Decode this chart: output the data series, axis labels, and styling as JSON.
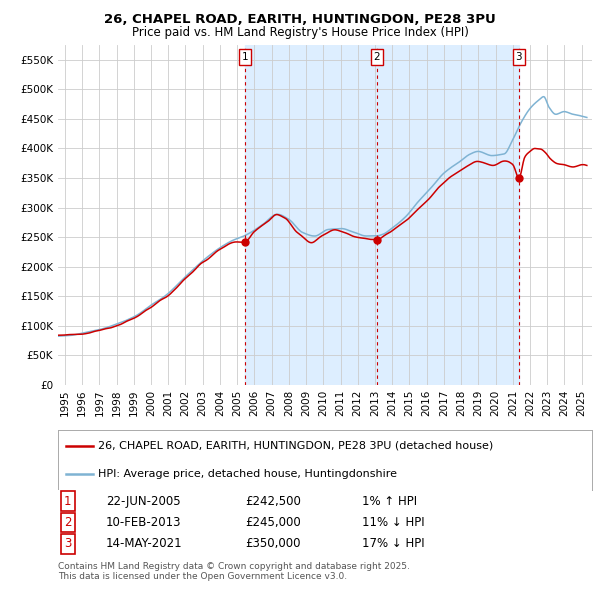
{
  "title_line1": "26, CHAPEL ROAD, EARITH, HUNTINGDON, PE28 3PU",
  "title_line2": "Price paid vs. HM Land Registry's House Price Index (HPI)",
  "legend_line1": "26, CHAPEL ROAD, EARITH, HUNTINGDON, PE28 3PU (detached house)",
  "legend_line2": "HPI: Average price, detached house, Huntingdonshire",
  "transactions": [
    {
      "label": "1",
      "date": "22-JUN-2005",
      "price": 242500,
      "pct": "1%",
      "dir": "↑",
      "x_year": 2005.47
    },
    {
      "label": "2",
      "date": "10-FEB-2013",
      "price": 245000,
      "pct": "11%",
      "dir": "↓",
      "x_year": 2013.11
    },
    {
      "label": "3",
      "date": "14-MAY-2021",
      "price": 350000,
      "pct": "17%",
      "dir": "↓",
      "x_year": 2021.36
    }
  ],
  "footer": "Contains HM Land Registry data © Crown copyright and database right 2025.\nThis data is licensed under the Open Government Licence v3.0.",
  "ylim": [
    0,
    575000
  ],
  "yticks": [
    0,
    50000,
    100000,
    150000,
    200000,
    250000,
    300000,
    350000,
    400000,
    450000,
    500000,
    550000
  ],
  "ytick_labels": [
    "£0",
    "£50K",
    "£100K",
    "£150K",
    "£200K",
    "£250K",
    "£300K",
    "£350K",
    "£400K",
    "£450K",
    "£500K",
    "£550K"
  ],
  "xlim_start": 1994.6,
  "xlim_end": 2025.6,
  "plot_bg": "#ffffff",
  "red_line_color": "#cc0000",
  "blue_line_color": "#7fb3d3",
  "shade_color": "#ddeeff",
  "grid_color": "#cccccc",
  "dashed_line_color": "#cc0000",
  "title1_fontsize": 9.5,
  "title2_fontsize": 8.5,
  "tick_fontsize": 7.5,
  "legend_fontsize": 8.0,
  "table_fontsize": 8.5,
  "footer_fontsize": 6.5
}
